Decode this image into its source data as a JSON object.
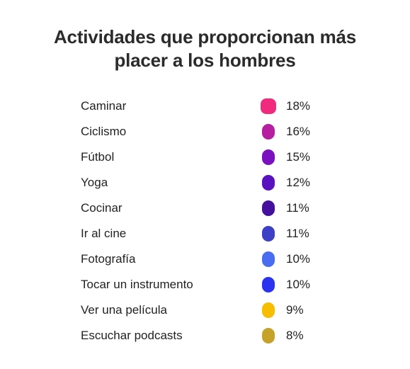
{
  "chart_data": {
    "type": "table",
    "title_lines": [
      "Actividades que proporcionan más",
      "placer a los hombres"
    ],
    "rows": [
      {
        "label": "Caminar",
        "value": 18,
        "value_text": "18%",
        "color": "#f02b7d"
      },
      {
        "label": "Ciclismo",
        "value": 16,
        "value_text": "16%",
        "color": "#b51fa0"
      },
      {
        "label": "Fútbol",
        "value": 15,
        "value_text": "15%",
        "color": "#7a10c0"
      },
      {
        "label": "Yoga",
        "value": 12,
        "value_text": "12%",
        "color": "#5a12c0"
      },
      {
        "label": "Cocinar",
        "value": 11,
        "value_text": "11%",
        "color": "#45109e"
      },
      {
        "label": "Ir al cine",
        "value": 11,
        "value_text": "11%",
        "color": "#3d3fc6"
      },
      {
        "label": "Fotografía",
        "value": 10,
        "value_text": "10%",
        "color": "#4a6cf0"
      },
      {
        "label": "Tocar un instrumento",
        "value": 10,
        "value_text": "10%",
        "color": "#2b33f0"
      },
      {
        "label": "Ver una película",
        "value": 9,
        "value_text": "9%",
        "color": "#f7bd00"
      },
      {
        "label": "Escuchar podcasts",
        "value": 8,
        "value_text": "8%",
        "color": "#c7a22b"
      }
    ]
  }
}
